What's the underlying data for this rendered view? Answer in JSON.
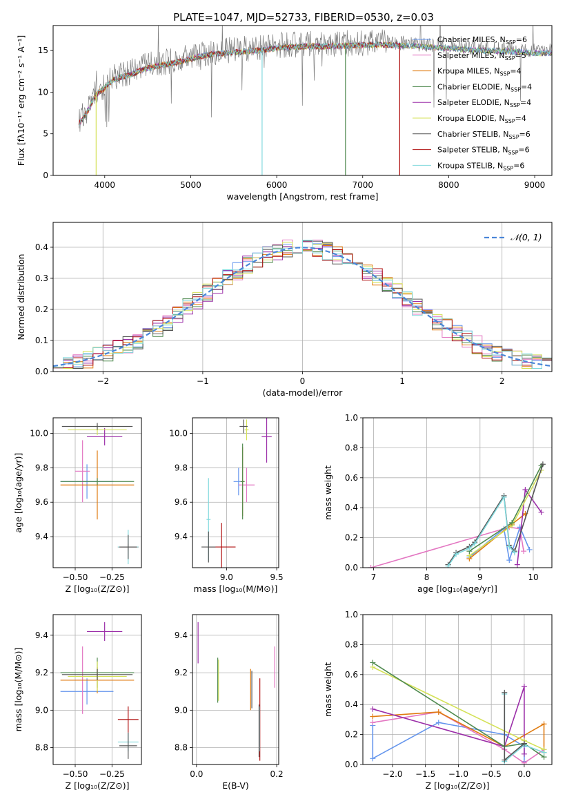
{
  "figure_title": "PLATE=1047, MJD=52733, FIBERID=0530, z=0.03",
  "model_colors": [
    "#6495ed",
    "#e377c2",
    "#e07b10",
    "#4f8a4f",
    "#9b2ea8",
    "#d4e157",
    "#555555",
    "#b01010",
    "#7fd8dc"
  ],
  "chart_data": [
    {
      "id": "spectrum",
      "type": "line",
      "xlabel": "wavelength [Angstrom, rest frame]",
      "ylabel": "Flux [fλ10⁻¹⁷ erg cm⁻² s⁻¹ A⁻¹]",
      "xlim": [
        3400,
        9200
      ],
      "ylim": [
        0,
        18
      ],
      "xticks": [
        4000,
        5000,
        6000,
        7000,
        8000,
        9000
      ],
      "yticks": [
        0,
        5,
        10,
        15
      ],
      "legend_placement": "top-right",
      "legend": [
        {
          "name": "Chabrier MILES, N",
          "sub": "SSP",
          "suffix": "=6"
        },
        {
          "name": "Salpeter MILES, N",
          "sub": "SSP",
          "suffix": "=5"
        },
        {
          "name": "Kroupa MILES, N",
          "sub": "SSP",
          "suffix": "=4"
        },
        {
          "name": "Chabrier ELODIE, N",
          "sub": "SSP",
          "suffix": "=4"
        },
        {
          "name": "Salpeter ELODIE, N",
          "sub": "SSP",
          "suffix": "=4"
        },
        {
          "name": "Kroupa ELODIE, N",
          "sub": "SSP",
          "suffix": "=4"
        },
        {
          "name": "Chabrier STELIB, N",
          "sub": "SSP",
          "suffix": "=6"
        },
        {
          "name": "Salpeter STELIB, N",
          "sub": "SSP",
          "suffix": "=6"
        },
        {
          "name": "Kroupa STELIB, N",
          "sub": "SSP",
          "suffix": "=6"
        }
      ],
      "continuum": [
        [
          3700,
          6.5
        ],
        [
          3800,
          8
        ],
        [
          3900,
          10
        ],
        [
          4000,
          10.8
        ],
        [
          4100,
          11.8
        ],
        [
          4300,
          12.4
        ],
        [
          4500,
          13.2
        ],
        [
          4800,
          13.8
        ],
        [
          5000,
          14.3
        ],
        [
          5200,
          14.8
        ],
        [
          5500,
          15.1
        ],
        [
          5800,
          15.3
        ],
        [
          6000,
          15.6
        ],
        [
          6300,
          15.8
        ],
        [
          6600,
          15.8
        ],
        [
          6900,
          15.9
        ],
        [
          7200,
          16
        ],
        [
          7500,
          15.9
        ],
        [
          7800,
          15.7
        ],
        [
          8100,
          15.5
        ],
        [
          8400,
          15.3
        ],
        [
          8700,
          15.2
        ],
        [
          9000,
          15
        ],
        [
          9200,
          15
        ]
      ],
      "dips": [
        {
          "series": 5,
          "x": 3900,
          "y": 0
        },
        {
          "series": 8,
          "x": 5830,
          "y": 0
        },
        {
          "series": 3,
          "x": 6800,
          "y": 0
        },
        {
          "series": 7,
          "x": 7430,
          "y": 0
        }
      ]
    },
    {
      "id": "residuals",
      "type": "histogram",
      "xlabel": "(data-model)/error",
      "ylabel": "Normed distribution",
      "xlim": [
        -2.5,
        2.5
      ],
      "ylim": [
        0,
        0.48
      ],
      "xticks": [
        -2,
        -1,
        0,
        1,
        2
      ],
      "yticks": [
        0.0,
        0.1,
        0.2,
        0.3,
        0.4
      ],
      "grid": true,
      "bins": 50,
      "reference_curve": {
        "label": "𝒩(0, 1)",
        "mean": 0,
        "sigma": 1
      },
      "legend_placement": "top-right"
    },
    {
      "id": "age_vs_Z",
      "type": "errorbar",
      "xlabel": "Z [log₁₀(Z/Z⊙)]",
      "ylabel": "age  [log₁₀(age/yr)]",
      "xlim": [
        -0.65,
        -0.05
      ],
      "ylim": [
        9.22,
        10.09
      ],
      "xticks": [
        -0.5,
        -0.25
      ],
      "yticks": [
        9.4,
        9.6,
        9.8,
        10.0
      ],
      "grid": true,
      "points": [
        {
          "c": 0,
          "x": -0.42,
          "xe": 0.18,
          "y": 9.72,
          "ye": 0.1
        },
        {
          "c": 1,
          "x": -0.45,
          "xe": 0.05,
          "y": 9.78,
          "ye": 0.18
        },
        {
          "c": 2,
          "x": -0.35,
          "xe": 0.25,
          "y": 9.7,
          "ye": 0.2
        },
        {
          "c": 3,
          "x": -0.35,
          "xe": 0.25,
          "y": 9.72,
          "ye": 0.02
        },
        {
          "c": 4,
          "x": -0.3,
          "xe": 0.12,
          "y": 9.98,
          "ye": 0.05
        },
        {
          "c": 5,
          "x": -0.35,
          "xe": 0.2,
          "y": 10.02,
          "ye": 0.03
        },
        {
          "c": 6,
          "x": -0.35,
          "xe": 0.24,
          "y": 10.04,
          "ye": 0.02
        },
        {
          "c": 7,
          "x": -0.14,
          "xe": 0.07,
          "y": 9.34,
          "ye": 0.02
        },
        {
          "c": 8,
          "x": -0.14,
          "xe": 0.07,
          "y": 9.34,
          "ye": 0.1
        },
        {
          "c": 6,
          "x": -0.14,
          "xe": 0.06,
          "y": 9.34,
          "ye": 0.07
        }
      ]
    },
    {
      "id": "age_vs_mass",
      "type": "errorbar",
      "xlabel": "mass [log₁₀(M/M⊙)]",
      "ylabel": "",
      "xlim": [
        8.66,
        9.52
      ],
      "ylim": [
        9.22,
        10.09
      ],
      "xticks": [
        9.0,
        9.5
      ],
      "yticks": [
        9.4,
        9.6,
        9.8,
        10.0
      ],
      "grid": true,
      "points": [
        {
          "c": 0,
          "x": 9.12,
          "xe": 0.05,
          "y": 9.72,
          "ye": 0.08
        },
        {
          "c": 1,
          "x": 9.2,
          "xe": 0.08,
          "y": 9.7,
          "ye": 0.1
        },
        {
          "c": 2,
          "x": 9.16,
          "xe": 0.02,
          "y": 9.72,
          "ye": 0.2
        },
        {
          "c": 3,
          "x": 9.16,
          "xe": 0.02,
          "y": 9.72,
          "ye": 0.22
        },
        {
          "c": 4,
          "x": 9.4,
          "xe": 0.05,
          "y": 9.98,
          "ye": 0.15
        },
        {
          "c": 5,
          "x": 9.2,
          "xe": 0.02,
          "y": 10.02,
          "ye": 0.06
        },
        {
          "c": 6,
          "x": 9.17,
          "xe": 0.04,
          "y": 10.04,
          "ye": 0.04
        },
        {
          "c": 7,
          "x": 8.95,
          "xe": 0.14,
          "y": 9.34,
          "ye": 0.14
        },
        {
          "c": 8,
          "x": 8.82,
          "xe": 0.02,
          "y": 9.5,
          "ye": 0.24
        },
        {
          "c": 6,
          "x": 8.82,
          "xe": 0.07,
          "y": 9.34,
          "ye": 0.09
        }
      ]
    },
    {
      "id": "mass_weight_vs_age",
      "type": "line",
      "xlabel": "age  [log₁₀(age/yr)]",
      "ylabel": "mass weight",
      "xlim": [
        6.8,
        10.35
      ],
      "ylim": [
        0,
        1
      ],
      "xticks": [
        7,
        8,
        9,
        10
      ],
      "yticks": [
        0.0,
        0.2,
        0.4,
        0.6,
        0.8,
        1.0
      ],
      "grid": true,
      "series": [
        {
          "c": 1,
          "points": [
            [
              6.95,
              0.0
            ],
            [
              9.45,
              0.26
            ],
            [
              9.55,
              0.27
            ],
            [
              9.75,
              0.26
            ],
            [
              9.82,
              0.11
            ]
          ]
        },
        {
          "c": 0,
          "points": [
            [
              8.8,
              0.07
            ],
            [
              9.45,
              0.26
            ],
            [
              9.55,
              0.05
            ],
            [
              9.75,
              0.27
            ],
            [
              9.93,
              0.12
            ]
          ]
        },
        {
          "c": 2,
          "points": [
            [
              8.8,
              0.06
            ],
            [
              9.6,
              0.29
            ],
            [
              9.85,
              0.36
            ]
          ]
        },
        {
          "c": 4,
          "points": [
            [
              9.7,
              0.02
            ],
            [
              9.85,
              0.52
            ],
            [
              10.15,
              0.37
            ]
          ]
        },
        {
          "c": 5,
          "points": [
            [
              8.8,
              0.08
            ],
            [
              9.6,
              0.28
            ],
            [
              10.15,
              0.65
            ]
          ]
        },
        {
          "c": 3,
          "points": [
            [
              8.8,
              0.11
            ],
            [
              9.6,
              0.3
            ],
            [
              10.15,
              0.68
            ]
          ]
        },
        {
          "c": 6,
          "points": [
            [
              8.4,
              0.02
            ],
            [
              8.55,
              0.1
            ],
            [
              8.8,
              0.14
            ],
            [
              8.9,
              0.17
            ],
            [
              9.45,
              0.48
            ],
            [
              9.55,
              0.15
            ],
            [
              9.65,
              0.11
            ],
            [
              10.18,
              0.69
            ]
          ]
        },
        {
          "c": 8,
          "points": [
            [
              8.4,
              0.01
            ],
            [
              8.55,
              0.09
            ],
            [
              8.8,
              0.13
            ],
            [
              8.9,
              0.16
            ],
            [
              9.45,
              0.47
            ],
            [
              9.55,
              0.14
            ],
            [
              9.65,
              0.1
            ]
          ]
        }
      ]
    },
    {
      "id": "mass_vs_Z",
      "type": "errorbar",
      "xlabel": "Z [log₁₀(Z/Z⊙)]",
      "ylabel": "mass [log₁₀(M/M⊙)]",
      "xlim": [
        -0.65,
        -0.05
      ],
      "ylim": [
        8.71,
        9.51
      ],
      "xticks": [
        -0.5,
        -0.25
      ],
      "yticks": [
        8.8,
        9.0,
        9.2,
        9.4
      ],
      "grid": true,
      "points": [
        {
          "c": 0,
          "x": -0.42,
          "xe": 0.18,
          "y": 9.1,
          "ye": 0.07
        },
        {
          "c": 1,
          "x": -0.45,
          "xe": 0.05,
          "y": 9.16,
          "ye": 0.18
        },
        {
          "c": 2,
          "x": -0.35,
          "xe": 0.25,
          "y": 9.16,
          "ye": 0.07
        },
        {
          "c": 3,
          "x": -0.35,
          "xe": 0.25,
          "y": 9.2,
          "ye": 0.08
        },
        {
          "c": 4,
          "x": -0.3,
          "xe": 0.12,
          "y": 9.42,
          "ye": 0.05
        },
        {
          "c": 5,
          "x": -0.35,
          "xe": 0.2,
          "y": 9.18,
          "ye": 0.08
        },
        {
          "c": 6,
          "x": -0.35,
          "xe": 0.24,
          "y": 9.19,
          "ye": 0.03
        },
        {
          "c": 7,
          "x": -0.14,
          "xe": 0.07,
          "y": 8.95,
          "ye": 0.07
        },
        {
          "c": 8,
          "x": -0.14,
          "xe": 0.07,
          "y": 8.83,
          "ye": 0.05
        },
        {
          "c": 6,
          "x": -0.14,
          "xe": 0.06,
          "y": 8.81,
          "ye": 0.07
        }
      ]
    },
    {
      "id": "mass_vs_ebv",
      "type": "errorbar",
      "xlabel": "E(B-V)",
      "ylabel": "",
      "xlim": [
        -0.01,
        0.205
      ],
      "ylim": [
        8.71,
        9.51
      ],
      "xticks": [
        0.0,
        0.2
      ],
      "yticks": [
        8.8,
        9.0,
        9.2,
        9.4
      ],
      "grid": true,
      "points": [
        {
          "c": 4,
          "x": 0.004,
          "y": 9.36,
          "ye": 0.11
        },
        {
          "c": 5,
          "x": 0.055,
          "y": 9.16,
          "ye": 0.11
        },
        {
          "c": 3,
          "x": 0.053,
          "y": 9.16,
          "ye": 0.12
        },
        {
          "c": 2,
          "x": 0.135,
          "y": 9.11,
          "ye": 0.11
        },
        {
          "c": 6,
          "x": 0.138,
          "y": 9.11,
          "ye": 0.1
        },
        {
          "c": 7,
          "x": 0.158,
          "y": 8.95,
          "ye": 0.22
        },
        {
          "c": 8,
          "x": 0.157,
          "y": 8.9,
          "ye": 0.12
        },
        {
          "c": 6,
          "x": 0.156,
          "y": 8.89,
          "ye": 0.14
        },
        {
          "c": 1,
          "x": 0.195,
          "y": 9.23,
          "ye": 0.11
        }
      ]
    },
    {
      "id": "mass_weight_vs_Z",
      "type": "line",
      "xlabel": "Z [log₁₀(Z/Z⊙)]",
      "ylabel": "mass weight",
      "xlim": [
        -2.45,
        0.42
      ],
      "ylim": [
        0,
        1
      ],
      "xticks": [
        -2.0,
        -1.5,
        -1.0,
        -0.5,
        0.0
      ],
      "yticks": [
        0.0,
        0.2,
        0.4,
        0.6,
        0.8,
        1.0
      ],
      "grid": true,
      "series": [
        {
          "c": 0,
          "points": [
            [
              -2.3,
              0.26
            ],
            [
              -2.3,
              0.04
            ],
            [
              -1.3,
              0.28
            ],
            [
              -0.3,
              0.2
            ],
            [
              0.0,
              0.12
            ],
            [
              0.0,
              0.02
            ]
          ]
        },
        {
          "c": 1,
          "points": [
            [
              -2.3,
              0.28
            ],
            [
              -1.3,
              0.35
            ],
            [
              -0.3,
              0.1
            ],
            [
              0.0,
              0.01
            ],
            [
              0.3,
              0.1
            ]
          ]
        },
        {
          "c": 2,
          "points": [
            [
              -2.3,
              0.32
            ],
            [
              -1.3,
              0.35
            ],
            [
              -0.3,
              0.12
            ],
            [
              0.3,
              0.27
            ],
            [
              0.3,
              0.08
            ]
          ]
        },
        {
          "c": 4,
          "points": [
            [
              -2.3,
              0.37
            ],
            [
              -0.3,
              0.12
            ],
            [
              0.0,
              0.52
            ],
            [
              0.0,
              0.07
            ]
          ]
        },
        {
          "c": 5,
          "points": [
            [
              -2.3,
              0.65
            ],
            [
              0.0,
              0.16
            ],
            [
              0.3,
              0.1
            ]
          ]
        },
        {
          "c": 3,
          "points": [
            [
              -2.3,
              0.68
            ],
            [
              -0.3,
              0.12
            ],
            [
              0.0,
              0.14
            ],
            [
              0.3,
              0.05
            ]
          ]
        },
        {
          "c": 8,
          "points": [
            [
              -0.3,
              0.47
            ],
            [
              -0.3,
              0.02
            ],
            [
              0.0,
              0.13
            ],
            [
              0.3,
              0.08
            ]
          ]
        },
        {
          "c": 6,
          "points": [
            [
              -0.3,
              0.48
            ],
            [
              -0.3,
              0.03
            ],
            [
              0.0,
              0.14
            ]
          ]
        }
      ]
    }
  ]
}
